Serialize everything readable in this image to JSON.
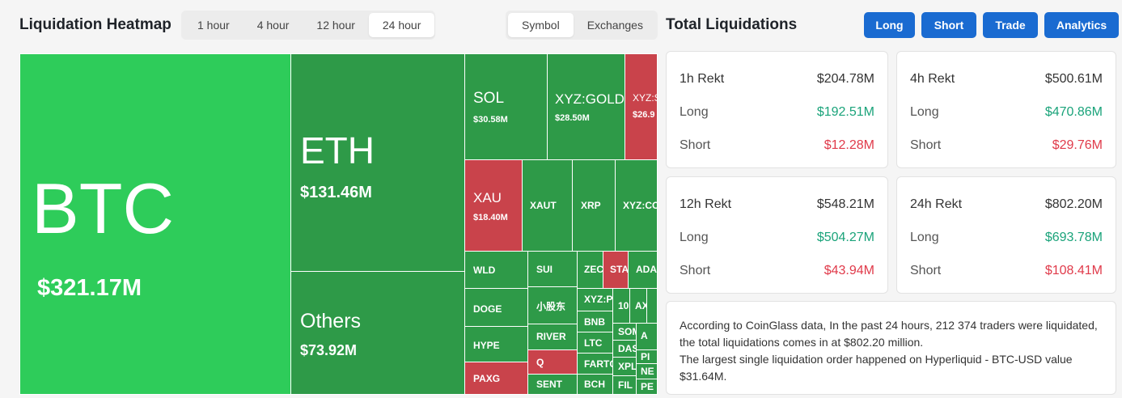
{
  "heatmap": {
    "title": "Liquidation Heatmap",
    "time_options": [
      "1 hour",
      "4 hour",
      "12 hour",
      "24 hour"
    ],
    "view_options": [
      "Symbol",
      "Exchanges"
    ],
    "tiles": {
      "btc": {
        "sym": "BTC",
        "val": "$321.17M"
      },
      "eth": {
        "sym": "ETH",
        "val": "$131.46M"
      },
      "others": {
        "sym": "Others",
        "val": "$73.92M"
      },
      "sol": {
        "sym": "SOL",
        "val": "$30.58M"
      },
      "xyzgold": {
        "sym": "XYZ:GOLD",
        "val": "$28.50M"
      },
      "xyzs": {
        "sym": "XYZ:S",
        "val": "$26.9"
      },
      "xau": {
        "sym": "XAU",
        "val": "$18.40M"
      },
      "xaut": {
        "sym": "XAUT"
      },
      "xrp": {
        "sym": "XRP"
      },
      "xyzco": {
        "sym": "XYZ:CO"
      },
      "wld": {
        "sym": "WLD"
      },
      "doge": {
        "sym": "DOGE"
      },
      "hype": {
        "sym": "HYPE"
      },
      "paxg": {
        "sym": "PAXG"
      },
      "sui": {
        "sym": "SUI"
      },
      "xiaogudong": {
        "sym": "小股东"
      },
      "river": {
        "sym": "RIVER"
      },
      "q": {
        "sym": "Q"
      },
      "sent": {
        "sym": "SENT"
      },
      "zec": {
        "sym": "ZEC"
      },
      "sta": {
        "sym": "STA"
      },
      "ada": {
        "sym": "ADA"
      },
      "xyzp": {
        "sym": "XYZ:P"
      },
      "bnb": {
        "sym": "BNB"
      },
      "ltc": {
        "sym": "LTC"
      },
      "fartco": {
        "sym": "FARTC"
      },
      "bch": {
        "sym": "BCH"
      },
      "t10": {
        "sym": "10"
      },
      "ax": {
        "sym": "AX"
      },
      "som": {
        "sym": "SOM"
      },
      "a": {
        "sym": "A"
      },
      "das": {
        "sym": "DAS"
      },
      "xpl": {
        "sym": "XPL"
      },
      "pi": {
        "sym": "PI"
      },
      "ne": {
        "sym": "NE"
      },
      "fil": {
        "sym": "FIL"
      },
      "pe": {
        "sym": "PE"
      }
    }
  },
  "totals": {
    "title": "Total Liquidations",
    "buttons": [
      "Long",
      "Short",
      "Trade",
      "Analytics"
    ],
    "cards": [
      {
        "head": "1h Rekt",
        "total": "$204.78M",
        "long_label": "Long",
        "long": "$192.51M",
        "short_label": "Short",
        "short": "$12.28M"
      },
      {
        "head": "4h Rekt",
        "total": "$500.61M",
        "long_label": "Long",
        "long": "$470.86M",
        "short_label": "Short",
        "short": "$29.76M"
      },
      {
        "head": "12h Rekt",
        "total": "$548.21M",
        "long_label": "Long",
        "long": "$504.27M",
        "short_label": "Short",
        "short": "$43.94M"
      },
      {
        "head": "24h Rekt",
        "total": "$802.20M",
        "long_label": "Long",
        "long": "$693.78M",
        "short_label": "Short",
        "short": "$108.41M"
      }
    ],
    "description": [
      "According to CoinGlass data, In the past 24 hours, 212 374 traders were liquidated, the total liquidations comes in at $802.20 million.",
      "The largest single liquidation order happened on Hyperliquid - BTC-USD value $31.64M."
    ]
  },
  "colors": {
    "accent": "#1a6bd1",
    "long": "#1aa37a",
    "short": "#e03a4a",
    "tile_green_bright": "#2ecc5a",
    "tile_green": "#2e9a48",
    "tile_red": "#c9434b"
  }
}
